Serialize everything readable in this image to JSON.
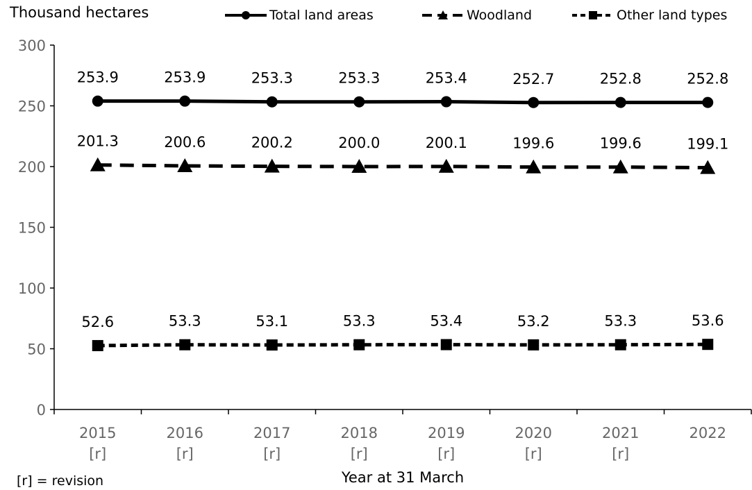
{
  "chart_data": {
    "type": "line",
    "ylabel": "Thousand hectares",
    "xlabel": "Year at 31 March",
    "note": "[r] = revision",
    "ylim": [
      0,
      300
    ],
    "yticks": [
      "0",
      "50",
      "100",
      "150",
      "200",
      "250",
      "300"
    ],
    "categories": [
      "2015",
      "2016",
      "2017",
      "2018",
      "2019",
      "2020",
      "2021",
      "2022"
    ],
    "category_suffix": [
      "[r]",
      "[r]",
      "[r]",
      "[r]",
      "[r]",
      "[r]",
      "[r]",
      ""
    ],
    "legend_position": "top",
    "grid": false,
    "series": [
      {
        "name": "Total land areas",
        "values": [
          253.9,
          253.9,
          253.3,
          253.3,
          253.4,
          252.7,
          252.8,
          252.8
        ],
        "labels": [
          "253.9",
          "253.9",
          "253.3",
          "253.3",
          "253.4",
          "252.7",
          "252.8",
          "252.8"
        ],
        "marker": "circle",
        "style": "solid",
        "color": "#000000"
      },
      {
        "name": "Woodland",
        "values": [
          201.3,
          200.6,
          200.2,
          200.0,
          200.1,
          199.6,
          199.6,
          199.1
        ],
        "labels": [
          "201.3",
          "200.6",
          "200.2",
          "200.0",
          "200.1",
          "199.6",
          "199.6",
          "199.1"
        ],
        "marker": "triangle",
        "style": "dashed",
        "color": "#000000"
      },
      {
        "name": "Other land types",
        "values": [
          52.6,
          53.3,
          53.1,
          53.3,
          53.4,
          53.2,
          53.3,
          53.6
        ],
        "labels": [
          "52.6",
          "53.3",
          "53.1",
          "53.3",
          "53.4",
          "53.2",
          "53.3",
          "53.6"
        ],
        "marker": "square",
        "style": "dotted",
        "color": "#000000"
      }
    ]
  }
}
